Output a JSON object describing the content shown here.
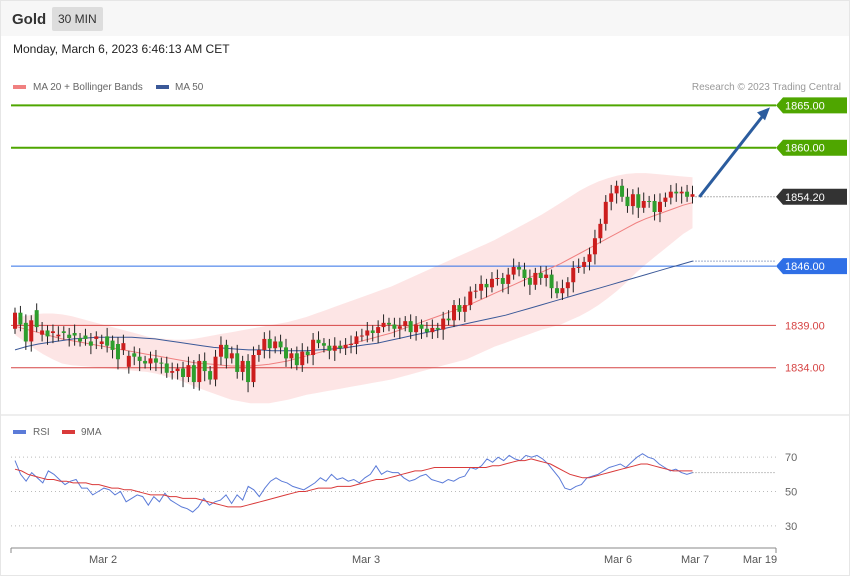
{
  "header": {
    "instrument": "Gold",
    "timeframe": "30 MIN",
    "datetime": "Monday, March 6, 2023 6:46:13 AM CET"
  },
  "legend": {
    "ma20": "MA 20 + Bollinger Bands",
    "ma50": "MA 50",
    "copyright": "Research © 2023 Trading Central",
    "rsi": "RSI",
    "rsi_ma": "9MA"
  },
  "colors": {
    "green_level": "#4fa600",
    "support_blue": "#2f6fe6",
    "support_red": "#d64545",
    "current_price": "#333333",
    "candle_up": "#2e9e2e",
    "candle_down": "#cc1d1d",
    "ma20": "#f08080",
    "ma50": "#3b5998",
    "bollinger_fill": "#fde0e0",
    "rsi_line": "#5b7bd8",
    "rsi_ma_line": "#d93a3a",
    "arrow": "#2b5c9e"
  },
  "chart_data": [
    {
      "type": "candlestick",
      "ylim": [
        1829,
        1868
      ],
      "x_tick_labels": [
        "Mar 2",
        "Mar 3",
        "Mar 6",
        "Mar 7",
        "Mar 19"
      ],
      "levels": [
        {
          "label": "1865.00",
          "value": 1865.0,
          "kind": "resistance"
        },
        {
          "label": "1860.00",
          "value": 1860.0,
          "kind": "resistance"
        },
        {
          "label": "1854.20",
          "value": 1854.2,
          "kind": "current"
        },
        {
          "label": "1846.00",
          "value": 1846.0,
          "kind": "pivot"
        },
        {
          "label": "1839.00",
          "value": 1839.0,
          "kind": "support"
        },
        {
          "label": "1834.00",
          "value": 1834.0,
          "kind": "support"
        }
      ],
      "close": [
        1838.6,
        1840.5,
        1839.3,
        1837.1,
        1840.8,
        1837.9,
        1838.4,
        1838.1,
        1837.7,
        1838.3,
        1837.9,
        1838.1,
        1837.5,
        1837.8,
        1837.1,
        1837.4,
        1836.8,
        1837.7,
        1837.2,
        1836.8,
        1836.1,
        1834.1,
        1835.7,
        1835.3,
        1834.8,
        1834.5,
        1835.1,
        1834.6,
        1834.5,
        1833.4,
        1833.6,
        1833.9,
        1832.9,
        1834.3,
        1832.3,
        1834.8,
        1833.6,
        1832.6,
        1835.3,
        1836.7,
        1835.1,
        1835.7,
        1833.5,
        1834.8,
        1832.3,
        1835.5,
        1836.1,
        1837.4,
        1836.3,
        1837.1,
        1836.4,
        1835.1,
        1835.7,
        1834.3,
        1835.9,
        1835.5,
        1837.3,
        1836.9,
        1836.6,
        1836.0,
        1836.6,
        1836.3,
        1836.7,
        1836.8,
        1837.7,
        1837.8,
        1838.4,
        1838.1,
        1838.8,
        1839.3,
        1839.1,
        1838.6,
        1838.9,
        1839.5,
        1838.2,
        1839.1,
        1838.6,
        1838.2,
        1838.7,
        1838.5,
        1839.8,
        1839.6,
        1841.4,
        1840.6,
        1841.4,
        1843.0,
        1843.1,
        1843.9,
        1843.5,
        1844.5,
        1844.6,
        1843.9,
        1845.0,
        1845.9,
        1845.6,
        1844.6,
        1843.8,
        1845.2,
        1844.6,
        1845.0,
        1843.4,
        1842.8,
        1843.4,
        1844.1,
        1845.8,
        1845.9,
        1846.5,
        1847.4,
        1849.3,
        1851.0,
        1853.6,
        1854.6,
        1855.5,
        1854.2,
        1853.1,
        1854.5,
        1852.9,
        1853.7,
        1853.7,
        1852.4,
        1853.6,
        1854.1,
        1854.8,
        1854.6,
        1854.8,
        1854.2
      ],
      "open": [
        1840.5,
        1839.1,
        1837.1,
        1839.6,
        1838.8,
        1838.4,
        1837.7,
        1838.3,
        1837.9,
        1838.1,
        1837.5,
        1837.8,
        1837.1,
        1837.4,
        1836.6,
        1837.7,
        1837.1,
        1836.6,
        1836.1,
        1835.0,
        1836.9,
        1835.4,
        1835.3,
        1834.8,
        1834.5,
        1835.1,
        1834.6,
        1834.5,
        1833.4,
        1833.6,
        1833.9,
        1832.9,
        1834.3,
        1832.3,
        1834.8,
        1833.6,
        1832.6,
        1835.3,
        1836.7,
        1835.1,
        1835.7,
        1833.5,
        1834.8,
        1832.3,
        1835.5,
        1836.1,
        1837.4,
        1836.3,
        1837.1,
        1836.4,
        1835.1,
        1835.7,
        1834.3,
        1835.9,
        1835.5,
        1837.3,
        1836.9,
        1836.6,
        1836.0,
        1836.6,
        1836.3,
        1836.7,
        1836.8,
        1837.7,
        1837.8,
        1838.4,
        1838.1,
        1838.8,
        1839.3,
        1839.1,
        1838.6,
        1838.9,
        1839.5,
        1838.2,
        1839.1,
        1838.6,
        1838.2,
        1838.7,
        1838.5,
        1839.8,
        1839.6,
        1841.4,
        1840.6,
        1841.4,
        1843.0,
        1843.1,
        1843.9,
        1843.5,
        1844.5,
        1844.6,
        1843.9,
        1845.0,
        1845.9,
        1845.6,
        1844.6,
        1843.8,
        1845.2,
        1844.6,
        1845.0,
        1843.4,
        1842.8,
        1843.4,
        1844.1,
        1845.8,
        1845.9,
        1846.5,
        1847.4,
        1849.3,
        1851.0,
        1853.6,
        1854.6,
        1855.5,
        1854.2,
        1853.1,
        1854.5,
        1852.9,
        1853.7,
        1853.7,
        1852.4,
        1853.6,
        1854.1,
        1854.8,
        1854.6,
        1854.8,
        1854.2,
        1854.5
      ],
      "ma20": [
        1838.9,
        1838.6,
        1838.3,
        1838.0,
        1837.7,
        1837.4,
        1837.2,
        1837.0,
        1836.8,
        1836.6,
        1836.4,
        1836.2,
        1836.0,
        1835.8,
        1835.6,
        1835.4,
        1835.2,
        1835.0,
        1834.8,
        1834.6,
        1834.5,
        1834.4,
        1834.3,
        1834.2,
        1834.2,
        1834.2,
        1834.3,
        1834.4,
        1834.6,
        1834.8,
        1835.1,
        1835.4,
        1835.7,
        1836.0,
        1836.3,
        1836.6,
        1836.9,
        1837.2,
        1837.5,
        1837.8,
        1838.1,
        1838.5,
        1838.9,
        1839.3,
        1839.7,
        1840.1,
        1840.5,
        1840.9,
        1841.3,
        1841.8,
        1842.3,
        1842.8,
        1843.3,
        1843.8,
        1844.3,
        1844.8,
        1845.3,
        1845.8,
        1846.3,
        1846.9,
        1847.5,
        1848.1,
        1848.7,
        1849.3,
        1849.9,
        1850.5,
        1851.1,
        1851.6,
        1852.0,
        1852.4,
        1852.8,
        1853.2,
        1853.5
      ],
      "bb_upper": [
        1839.9,
        1840.1,
        1840.3,
        1840.4,
        1840.4,
        1840.3,
        1840.1,
        1839.8,
        1839.5,
        1839.2,
        1838.9,
        1838.6,
        1838.3,
        1838.0,
        1837.7,
        1837.5,
        1837.4,
        1837.3,
        1837.3,
        1837.4,
        1837.6,
        1837.8,
        1838.0,
        1838.2,
        1838.4,
        1838.6,
        1838.8,
        1839.0,
        1839.2,
        1839.4,
        1839.7,
        1840.0,
        1840.4,
        1840.8,
        1841.2,
        1841.6,
        1842.0,
        1842.4,
        1842.8,
        1843.2,
        1843.6,
        1844.1,
        1844.6,
        1845.1,
        1845.6,
        1846.1,
        1846.6,
        1847.1,
        1847.6,
        1848.1,
        1848.6,
        1849.1,
        1849.7,
        1850.3,
        1850.9,
        1851.5,
        1852.1,
        1852.8,
        1853.5,
        1854.2,
        1854.9,
        1855.5,
        1856.0,
        1856.4,
        1856.7,
        1856.9,
        1857.0,
        1857.0,
        1856.9,
        1856.8,
        1856.7,
        1856.6,
        1856.5
      ],
      "bb_lower": [
        1837.9,
        1837.1,
        1836.3,
        1835.6,
        1835.0,
        1834.5,
        1834.3,
        1834.2,
        1834.1,
        1834.0,
        1833.9,
        1833.8,
        1833.7,
        1833.6,
        1833.5,
        1833.3,
        1833.0,
        1832.7,
        1832.3,
        1831.8,
        1831.4,
        1831.0,
        1830.6,
        1830.2,
        1830.0,
        1829.8,
        1829.8,
        1829.8,
        1830.0,
        1830.2,
        1830.5,
        1830.8,
        1831.0,
        1831.2,
        1831.4,
        1831.6,
        1831.8,
        1832.0,
        1832.2,
        1832.4,
        1832.6,
        1832.9,
        1833.2,
        1833.5,
        1833.8,
        1834.1,
        1834.4,
        1834.7,
        1835.0,
        1835.5,
        1836.0,
        1836.5,
        1836.9,
        1837.3,
        1837.7,
        1838.1,
        1838.5,
        1838.8,
        1839.1,
        1839.6,
        1840.1,
        1840.7,
        1841.4,
        1842.2,
        1843.1,
        1844.1,
        1845.2,
        1846.2,
        1847.1,
        1848.0,
        1848.9,
        1849.8,
        1850.5
      ],
      "ma50": [
        1836.1,
        1836.5,
        1836.8,
        1837.0,
        1837.2,
        1837.4,
        1837.5,
        1837.6,
        1837.6,
        1837.6,
        1837.6,
        1837.5,
        1837.4,
        1837.2,
        1837.0,
        1836.8,
        1836.6,
        1836.4,
        1836.3,
        1836.2,
        1836.1,
        1836.1,
        1836.0,
        1836.0,
        1836.0,
        1836.0,
        1836.1,
        1836.2,
        1836.3,
        1836.5,
        1836.7,
        1836.9,
        1837.2,
        1837.5,
        1837.8,
        1838.1,
        1838.4,
        1838.7,
        1839.0,
        1839.3,
        1839.6,
        1839.9,
        1840.2,
        1840.6,
        1841.0,
        1841.4,
        1841.8,
        1842.2,
        1842.6,
        1843.0,
        1843.4,
        1843.8,
        1844.2,
        1844.6,
        1845.0,
        1845.4,
        1845.8,
        1846.2,
        1846.6
      ],
      "forecast_arrow": {
        "from": 1854.2,
        "to": 1865.0
      }
    },
    {
      "type": "line",
      "name": "RSI",
      "ylim": [
        20,
        80
      ],
      "y_tick_labels": [
        "70",
        "50",
        "30"
      ],
      "rsi": [
        68,
        60,
        56,
        61,
        58,
        55,
        62,
        60,
        57,
        54,
        56,
        57,
        52,
        52,
        48,
        50,
        52,
        51,
        48,
        50,
        44,
        46,
        48,
        47,
        42,
        47,
        44,
        49,
        45,
        43,
        41,
        40,
        38,
        41,
        46,
        42,
        44,
        45,
        48,
        43,
        48,
        45,
        53,
        51,
        47,
        52,
        56,
        58,
        56,
        55,
        53,
        52,
        51,
        53,
        55,
        58,
        56,
        60,
        57,
        58,
        56,
        57,
        55,
        58,
        60,
        65,
        60,
        62,
        61,
        61,
        58,
        56,
        57,
        59,
        60,
        57,
        56,
        55,
        57,
        56,
        58,
        59,
        64,
        63,
        65,
        69,
        67,
        70,
        68,
        71,
        69,
        68,
        71,
        70,
        71,
        69,
        66,
        62,
        58,
        52,
        51,
        53,
        54,
        58,
        59,
        60,
        62,
        64,
        65,
        66,
        64,
        67,
        70,
        72,
        70,
        69,
        66,
        64,
        62,
        63,
        61,
        60,
        61
      ],
      "rsi_ma": [
        63,
        62,
        60,
        59,
        58,
        57,
        57,
        56,
        56,
        55,
        55,
        55,
        54,
        54,
        53,
        52,
        52,
        51,
        51,
        50,
        49,
        48,
        48,
        48,
        47,
        47,
        46,
        46,
        46,
        45,
        44,
        43,
        42,
        41,
        41,
        41,
        42,
        43,
        44,
        45,
        46,
        47,
        48,
        49,
        50,
        50,
        51,
        52,
        52,
        52,
        53,
        53,
        53,
        54,
        55,
        56,
        57,
        57,
        58,
        59,
        60,
        61,
        62,
        62,
        63,
        64,
        64,
        64,
        64,
        64,
        64,
        64,
        64,
        64,
        65,
        65,
        66,
        67,
        68,
        68,
        69,
        68,
        67,
        66,
        64,
        62,
        60,
        59,
        58,
        58,
        59,
        60,
        61,
        62,
        63,
        64,
        65,
        66,
        66,
        65,
        64,
        63,
        62,
        62,
        62,
        62
      ]
    }
  ]
}
